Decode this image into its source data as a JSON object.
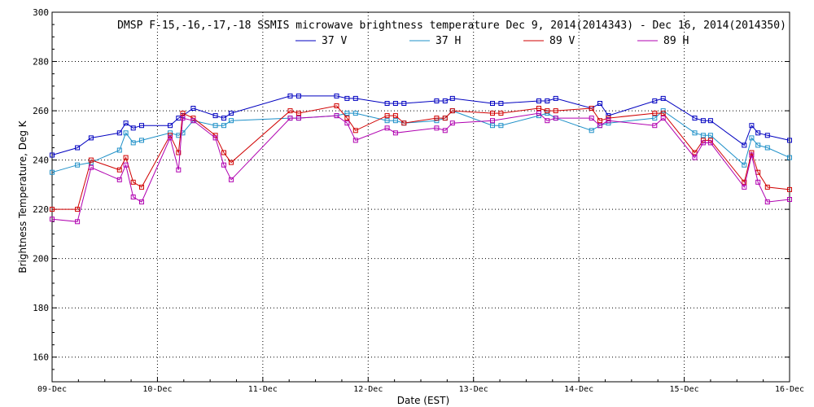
{
  "chart_data": {
    "type": "line",
    "title": "DMSP F-15,-16,-17,-18 SSMIS microwave brightness temperature Dec  9, 2014(2014343) - Dec 16, 2014(2014350)",
    "xlabel": "Date (EST)",
    "ylabel": "Brightness Temperature, Deg K",
    "xlim": [
      0,
      7
    ],
    "ylim": [
      150,
      300
    ],
    "yticks": [
      160,
      180,
      200,
      220,
      240,
      260,
      280,
      300
    ],
    "xtick_labels": [
      "09-Dec",
      "10-Dec",
      "11-Dec",
      "12-Dec",
      "13-Dec",
      "14-Dec",
      "15-Dec",
      "16-Dec"
    ],
    "x_unit": "days since 09-Dec 00:00",
    "grid": true,
    "legend_position": "top",
    "series": [
      {
        "name": "37 V",
        "color": "#0000c0",
        "points": [
          [
            0,
            242
          ],
          [
            0.24,
            245
          ],
          [
            0.37,
            249
          ],
          [
            0.64,
            251
          ],
          [
            0.7,
            255
          ],
          [
            0.77,
            253
          ],
          [
            0.85,
            254
          ],
          [
            1.12,
            254
          ],
          [
            1.2,
            257
          ],
          [
            1.24,
            258
          ],
          [
            1.34,
            261
          ],
          [
            1.55,
            258
          ],
          [
            1.63,
            257
          ],
          [
            1.7,
            259
          ],
          [
            2.26,
            266
          ],
          [
            2.34,
            266
          ],
          [
            2.7,
            266
          ],
          [
            2.8,
            265
          ],
          [
            2.88,
            265
          ],
          [
            3.18,
            263
          ],
          [
            3.26,
            263
          ],
          [
            3.34,
            263
          ],
          [
            3.65,
            264
          ],
          [
            3.73,
            264
          ],
          [
            3.8,
            265
          ],
          [
            4.18,
            263
          ],
          [
            4.26,
            263
          ],
          [
            4.62,
            264
          ],
          [
            4.7,
            264
          ],
          [
            4.78,
            265
          ],
          [
            5.12,
            261
          ],
          [
            5.2,
            263
          ],
          [
            5.28,
            258
          ],
          [
            5.72,
            264
          ],
          [
            5.8,
            265
          ],
          [
            6.1,
            257
          ],
          [
            6.18,
            256
          ],
          [
            6.25,
            256
          ],
          [
            6.57,
            246
          ],
          [
            6.64,
            254
          ],
          [
            6.7,
            251
          ],
          [
            6.79,
            250
          ],
          [
            7.0,
            248
          ]
        ]
      },
      {
        "name": "37 H",
        "color": "#1e90c8",
        "points": [
          [
            0,
            235
          ],
          [
            0.24,
            238
          ],
          [
            0.37,
            239
          ],
          [
            0.64,
            244
          ],
          [
            0.7,
            251
          ],
          [
            0.77,
            247
          ],
          [
            0.85,
            248
          ],
          [
            1.12,
            251
          ],
          [
            1.2,
            250
          ],
          [
            1.24,
            251
          ],
          [
            1.34,
            256
          ],
          [
            1.55,
            254
          ],
          [
            1.63,
            254
          ],
          [
            1.7,
            256
          ],
          [
            2.26,
            257
          ],
          [
            2.34,
            257
          ],
          [
            2.7,
            258
          ],
          [
            2.8,
            259
          ],
          [
            2.88,
            259
          ],
          [
            3.18,
            256
          ],
          [
            3.26,
            256
          ],
          [
            3.34,
            255
          ],
          [
            3.65,
            256
          ],
          [
            3.73,
            257
          ],
          [
            3.8,
            260
          ],
          [
            4.18,
            254
          ],
          [
            4.26,
            254
          ],
          [
            4.62,
            258
          ],
          [
            4.7,
            259
          ],
          [
            4.78,
            257
          ],
          [
            5.12,
            252
          ],
          [
            5.2,
            254
          ],
          [
            5.28,
            255
          ],
          [
            5.72,
            257
          ],
          [
            5.8,
            260
          ],
          [
            6.1,
            251
          ],
          [
            6.18,
            250
          ],
          [
            6.25,
            250
          ],
          [
            6.57,
            238
          ],
          [
            6.64,
            249
          ],
          [
            6.7,
            246
          ],
          [
            6.79,
            245
          ],
          [
            7.0,
            241
          ]
        ]
      },
      {
        "name": "89 V",
        "color": "#d00000",
        "points": [
          [
            0,
            220
          ],
          [
            0.24,
            220
          ],
          [
            0.37,
            240
          ],
          [
            0.64,
            236
          ],
          [
            0.7,
            241
          ],
          [
            0.77,
            231
          ],
          [
            0.85,
            229
          ],
          [
            1.12,
            250
          ],
          [
            1.2,
            243
          ],
          [
            1.24,
            259
          ],
          [
            1.34,
            257
          ],
          [
            1.55,
            250
          ],
          [
            1.63,
            243
          ],
          [
            1.7,
            239
          ],
          [
            2.26,
            260
          ],
          [
            2.34,
            259
          ],
          [
            2.7,
            262
          ],
          [
            2.8,
            257
          ],
          [
            2.88,
            252
          ],
          [
            3.18,
            258
          ],
          [
            3.26,
            258
          ],
          [
            3.34,
            255
          ],
          [
            3.65,
            257
          ],
          [
            3.73,
            257
          ],
          [
            3.8,
            260
          ],
          [
            4.18,
            259
          ],
          [
            4.26,
            259
          ],
          [
            4.62,
            261
          ],
          [
            4.7,
            260
          ],
          [
            4.78,
            260
          ],
          [
            5.12,
            261
          ],
          [
            5.2,
            256
          ],
          [
            5.28,
            257
          ],
          [
            5.72,
            259
          ],
          [
            5.8,
            259
          ],
          [
            6.1,
            243
          ],
          [
            6.18,
            248
          ],
          [
            6.25,
            248
          ],
          [
            6.57,
            231
          ],
          [
            6.64,
            243
          ],
          [
            6.7,
            235
          ],
          [
            6.79,
            229
          ],
          [
            7.0,
            228
          ]
        ]
      },
      {
        "name": "89 H",
        "color": "#b000b0",
        "points": [
          [
            0,
            216
          ],
          [
            0.24,
            215
          ],
          [
            0.37,
            237
          ],
          [
            0.64,
            232
          ],
          [
            0.7,
            238
          ],
          [
            0.77,
            225
          ],
          [
            0.85,
            223
          ],
          [
            1.12,
            249
          ],
          [
            1.2,
            236
          ],
          [
            1.24,
            257
          ],
          [
            1.34,
            256
          ],
          [
            1.55,
            249
          ],
          [
            1.63,
            238
          ],
          [
            1.7,
            232
          ],
          [
            2.26,
            257
          ],
          [
            2.34,
            257
          ],
          [
            2.7,
            258
          ],
          [
            2.8,
            255
          ],
          [
            2.88,
            248
          ],
          [
            3.18,
            253
          ],
          [
            3.26,
            251
          ],
          [
            3.65,
            253
          ],
          [
            3.73,
            252
          ],
          [
            3.8,
            255
          ],
          [
            4.18,
            256
          ],
          [
            4.62,
            259
          ],
          [
            4.7,
            256
          ],
          [
            4.78,
            257
          ],
          [
            5.12,
            257
          ],
          [
            5.2,
            254
          ],
          [
            5.28,
            256
          ],
          [
            5.72,
            254
          ],
          [
            5.8,
            257
          ],
          [
            6.1,
            241
          ],
          [
            6.18,
            247
          ],
          [
            6.25,
            247
          ],
          [
            6.57,
            229
          ],
          [
            6.64,
            242
          ],
          [
            6.7,
            231
          ],
          [
            6.79,
            223
          ],
          [
            7.0,
            224
          ]
        ]
      }
    ]
  }
}
